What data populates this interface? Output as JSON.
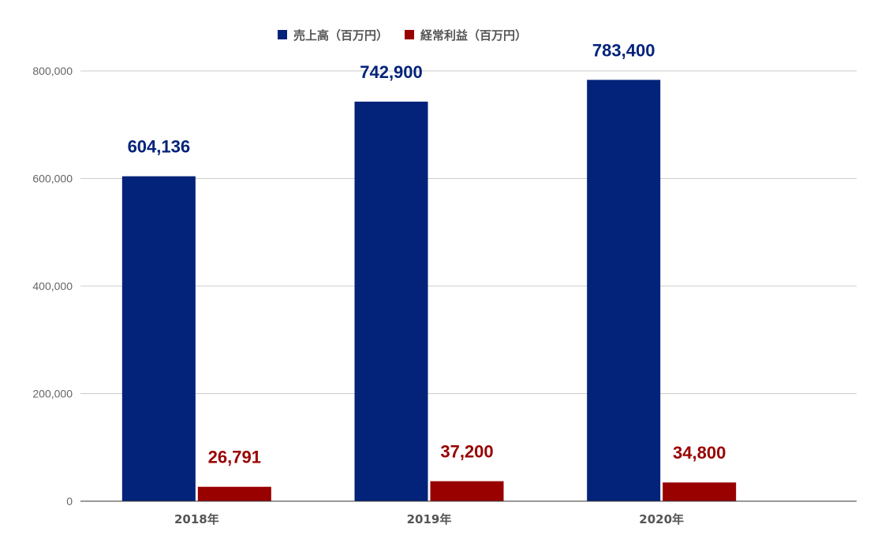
{
  "chart_data": {
    "type": "bar",
    "title": "",
    "xlabel": "",
    "ylabel": "",
    "categories": [
      "2018年",
      "2019年",
      "2020年"
    ],
    "series": [
      {
        "name": "売上高（百万円）",
        "color": "#03237a",
        "values": [
          604136,
          742900,
          783400
        ],
        "labels": [
          "604,136",
          "742,900",
          "783,400"
        ]
      },
      {
        "name": "経常利益（百万円）",
        "color": "#990000",
        "values": [
          26791,
          37200,
          34800
        ],
        "labels": [
          "26,791",
          "37,200",
          "34,800"
        ]
      }
    ],
    "ylim": [
      0,
      800000
    ],
    "yticks": [
      0,
      200000,
      400000,
      600000,
      800000
    ],
    "ytick_labels": [
      "0",
      "200,000",
      "400,000",
      "600,000",
      "800,000"
    ],
    "grid": true,
    "legend_position": "top-center"
  }
}
